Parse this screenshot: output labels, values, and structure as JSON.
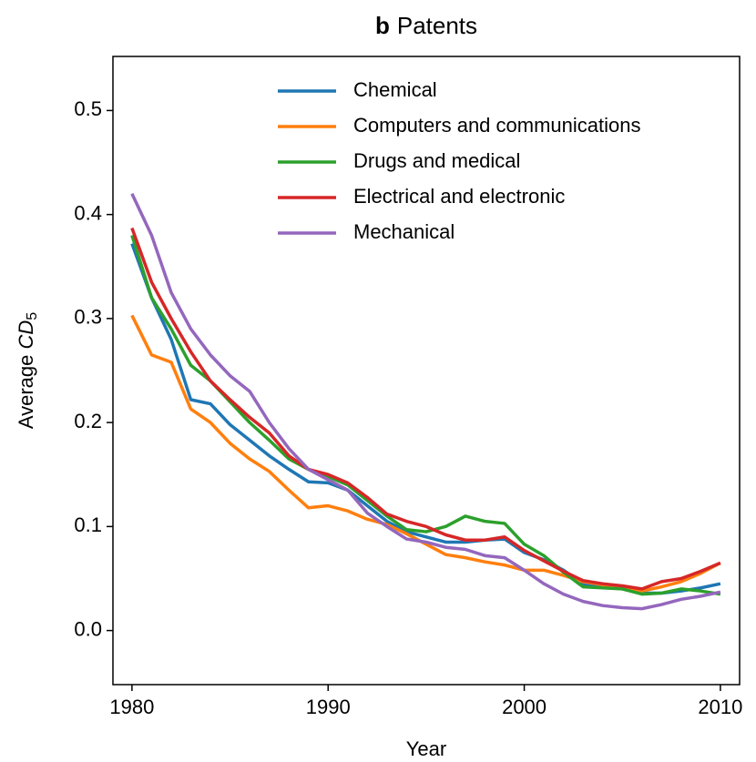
{
  "chart_data": {
    "type": "line",
    "label": "b",
    "title": "Patents",
    "xlabel": "Year",
    "ylabel_parts": [
      "Average ",
      "CD",
      "5"
    ],
    "x": [
      1980,
      1981,
      1982,
      1983,
      1984,
      1985,
      1986,
      1987,
      1988,
      1989,
      1990,
      1991,
      1992,
      1993,
      1994,
      1995,
      1996,
      1997,
      1998,
      1999,
      2000,
      2001,
      2002,
      2003,
      2004,
      2005,
      2006,
      2007,
      2008,
      2009,
      2010
    ],
    "series": [
      {
        "name": "Chemical",
        "color": "#1f77b4",
        "values": [
          0.372,
          0.32,
          0.28,
          0.222,
          0.218,
          0.198,
          0.183,
          0.168,
          0.155,
          0.143,
          0.142,
          0.135,
          0.12,
          0.105,
          0.095,
          0.09,
          0.085,
          0.085,
          0.087,
          0.088,
          0.075,
          0.068,
          0.058,
          0.045,
          0.042,
          0.04,
          0.036,
          0.036,
          0.038,
          0.041,
          0.045
        ]
      },
      {
        "name": "Computers and communications",
        "color": "#ff7f0e",
        "values": [
          0.303,
          0.265,
          0.258,
          0.213,
          0.2,
          0.18,
          0.165,
          0.153,
          0.135,
          0.118,
          0.12,
          0.115,
          0.107,
          0.102,
          0.093,
          0.083,
          0.073,
          0.07,
          0.066,
          0.063,
          0.058,
          0.058,
          0.053,
          0.047,
          0.044,
          0.04,
          0.038,
          0.042,
          0.047,
          0.055,
          0.065
        ]
      },
      {
        "name": "Drugs and medical",
        "color": "#2ca02c",
        "values": [
          0.38,
          0.32,
          0.29,
          0.255,
          0.24,
          0.22,
          0.2,
          0.183,
          0.165,
          0.155,
          0.148,
          0.14,
          0.125,
          0.11,
          0.097,
          0.095,
          0.1,
          0.11,
          0.105,
          0.103,
          0.083,
          0.072,
          0.056,
          0.042,
          0.041,
          0.04,
          0.035,
          0.036,
          0.04,
          0.038,
          0.035
        ]
      },
      {
        "name": "Electrical and electronic",
        "color": "#d62728",
        "values": [
          0.387,
          0.335,
          0.3,
          0.268,
          0.24,
          0.222,
          0.205,
          0.19,
          0.168,
          0.155,
          0.15,
          0.142,
          0.128,
          0.112,
          0.105,
          0.1,
          0.092,
          0.087,
          0.087,
          0.09,
          0.077,
          0.067,
          0.057,
          0.048,
          0.045,
          0.043,
          0.04,
          0.047,
          0.05,
          0.057,
          0.065
        ]
      },
      {
        "name": "Mechanical",
        "color": "#9467bd",
        "values": [
          0.42,
          0.38,
          0.325,
          0.29,
          0.265,
          0.245,
          0.23,
          0.2,
          0.175,
          0.155,
          0.145,
          0.135,
          0.113,
          0.1,
          0.088,
          0.085,
          0.08,
          0.078,
          0.072,
          0.07,
          0.058,
          0.045,
          0.035,
          0.028,
          0.024,
          0.022,
          0.021,
          0.025,
          0.03,
          0.033,
          0.037
        ]
      }
    ],
    "xlim": [
      1979.03,
      2010.98
    ],
    "xticks": [
      1980,
      1990,
      2000,
      2010
    ],
    "ylim": [
      -0.052,
      0.552
    ],
    "yticks": [
      {
        "value": 0,
        "label": "0.0"
      },
      0.1,
      0.2,
      0.3,
      0.4,
      0.5
    ],
    "legend": "upper center"
  }
}
